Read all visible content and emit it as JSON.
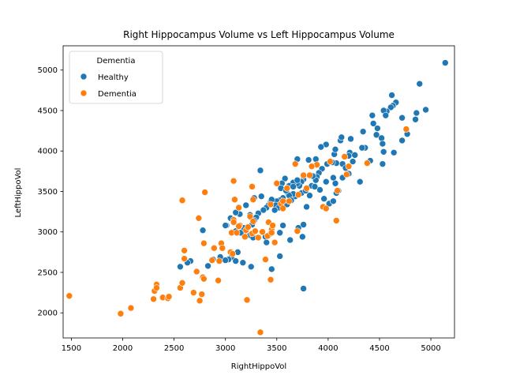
{
  "chart_data": {
    "type": "scatter",
    "title": "Right Hippocampus Volume vs Left Hippocampus Volume",
    "xlabel": "RightHippoVol",
    "ylabel": "LeftHippoVol",
    "xlim": [
      1420,
      5230
    ],
    "ylim": [
      1690,
      5300
    ],
    "xticks": [
      1500,
      2000,
      2500,
      3000,
      3500,
      4000,
      4500,
      5000
    ],
    "yticks": [
      2000,
      2500,
      3000,
      3500,
      4000,
      4500,
      5000
    ],
    "grid": false,
    "legend": {
      "title": "Dementia",
      "position": "top-left"
    },
    "series": [
      {
        "name": "Healthy",
        "color": "#1f77b4",
        "points": [
          [
            5140,
            5090
          ],
          [
            4890,
            4830
          ],
          [
            4620,
            4690
          ],
          [
            4660,
            4600
          ],
          [
            4630,
            4560
          ],
          [
            4610,
            4540
          ],
          [
            4570,
            4490
          ],
          [
            4540,
            4500
          ],
          [
            4560,
            4440
          ],
          [
            4430,
            4440
          ],
          [
            4720,
            4410
          ],
          [
            4950,
            4510
          ],
          [
            4860,
            4470
          ],
          [
            4850,
            4390
          ],
          [
            4440,
            4340
          ],
          [
            4480,
            4280
          ],
          [
            4340,
            4240
          ],
          [
            4470,
            4200
          ],
          [
            4520,
            4160
          ],
          [
            4770,
            4210
          ],
          [
            4720,
            4130
          ],
          [
            4220,
            4150
          ],
          [
            4120,
            4130
          ],
          [
            4130,
            4170
          ],
          [
            4060,
            3960
          ],
          [
            4070,
            4020
          ],
          [
            3980,
            4080
          ],
          [
            3930,
            4050
          ],
          [
            3880,
            3900
          ],
          [
            3810,
            3890
          ],
          [
            3700,
            3900
          ],
          [
            4360,
            4040
          ],
          [
            4330,
            4040
          ],
          [
            4530,
            4090
          ],
          [
            4640,
            3980
          ],
          [
            4540,
            3990
          ],
          [
            4410,
            3880
          ],
          [
            4530,
            3840
          ],
          [
            4210,
            3980
          ],
          [
            4200,
            3940
          ],
          [
            4140,
            3840
          ],
          [
            4080,
            3850
          ],
          [
            4240,
            3870
          ],
          [
            4040,
            3860
          ],
          [
            3990,
            3840
          ],
          [
            3940,
            3780
          ],
          [
            3910,
            3730
          ],
          [
            3890,
            3680
          ],
          [
            3880,
            3640
          ],
          [
            3850,
            3690
          ],
          [
            3760,
            3650
          ],
          [
            3740,
            3620
          ],
          [
            3720,
            3570
          ],
          [
            3700,
            3600
          ],
          [
            3660,
            3610
          ],
          [
            3620,
            3570
          ],
          [
            3580,
            3660
          ],
          [
            3610,
            3470
          ],
          [
            3550,
            3600
          ],
          [
            3540,
            3540
          ],
          [
            3560,
            3420
          ],
          [
            3530,
            3390
          ],
          [
            3500,
            3380
          ],
          [
            3490,
            3330
          ],
          [
            3520,
            3300
          ],
          [
            3480,
            3270
          ],
          [
            3440,
            3370
          ],
          [
            3420,
            3330
          ],
          [
            3400,
            3300
          ],
          [
            3370,
            3270
          ],
          [
            3320,
            3230
          ],
          [
            3300,
            3180
          ],
          [
            3280,
            3140
          ],
          [
            3240,
            3210
          ],
          [
            3140,
            3220
          ],
          [
            3100,
            3240
          ],
          [
            3050,
            3170
          ],
          [
            3010,
            3080
          ],
          [
            3100,
            3010
          ],
          [
            3150,
            2990
          ],
          [
            3240,
            2960
          ],
          [
            3270,
            2930
          ],
          [
            3400,
            2870
          ],
          [
            3390,
            2940
          ],
          [
            3440,
            2980
          ],
          [
            3530,
            2990
          ],
          [
            3630,
            2900
          ],
          [
            3560,
            3080
          ],
          [
            3710,
            3050
          ],
          [
            3750,
            2940
          ],
          [
            3760,
            3090
          ],
          [
            3790,
            3310
          ],
          [
            3820,
            3450
          ],
          [
            3740,
            3480
          ],
          [
            3680,
            3440
          ],
          [
            3660,
            3470
          ],
          [
            3780,
            3510
          ],
          [
            3840,
            3570
          ],
          [
            3960,
            3410
          ],
          [
            4010,
            3350
          ],
          [
            4050,
            3380
          ],
          [
            4100,
            3510
          ],
          [
            4070,
            3600
          ],
          [
            4140,
            3670
          ],
          [
            4200,
            3720
          ],
          [
            4310,
            3620
          ],
          [
            3920,
            3520
          ],
          [
            3980,
            3620
          ],
          [
            3340,
            3760
          ],
          [
            3280,
            3420
          ],
          [
            3350,
            3440
          ],
          [
            3200,
            3330
          ],
          [
            3120,
            2750
          ],
          [
            3060,
            2690
          ],
          [
            3030,
            2660
          ],
          [
            2950,
            2690
          ],
          [
            2880,
            2660
          ],
          [
            3100,
            2640
          ],
          [
            3170,
            2620
          ],
          [
            3250,
            2570
          ],
          [
            3000,
            2650
          ],
          [
            2830,
            2580
          ],
          [
            2660,
            2640
          ],
          [
            2630,
            2620
          ],
          [
            2560,
            2570
          ],
          [
            2780,
            3020
          ],
          [
            3000,
            3080
          ],
          [
            3180,
            3050
          ],
          [
            3260,
            3090
          ],
          [
            3450,
            2540
          ],
          [
            3530,
            2700
          ],
          [
            3760,
            2300
          ],
          [
            3620,
            3450
          ],
          [
            3660,
            3560
          ],
          [
            3700,
            3640
          ],
          [
            3870,
            3560
          ],
          [
            4080,
            3480
          ],
          [
            4170,
            3790
          ],
          [
            4260,
            3950
          ],
          [
            4050,
            3670
          ],
          [
            3450,
            3400
          ],
          [
            3600,
            3340
          ],
          [
            3640,
            3390
          ],
          [
            3590,
            3510
          ]
        ]
      },
      {
        "name": "Dementia",
        "color": "#ff7f0e",
        "points": [
          [
            1480,
            2210
          ],
          [
            1980,
            1990
          ],
          [
            2080,
            2060
          ],
          [
            2300,
            2170
          ],
          [
            2310,
            2270
          ],
          [
            2330,
            2350
          ],
          [
            2330,
            2310
          ],
          [
            2390,
            2190
          ],
          [
            2440,
            2180
          ],
          [
            2450,
            2200
          ],
          [
            2560,
            2310
          ],
          [
            2580,
            2370
          ],
          [
            2580,
            3390
          ],
          [
            2600,
            2770
          ],
          [
            2600,
            2670
          ],
          [
            2690,
            2250
          ],
          [
            2720,
            2510
          ],
          [
            2740,
            3170
          ],
          [
            2750,
            2150
          ],
          [
            2770,
            2230
          ],
          [
            2780,
            2440
          ],
          [
            2790,
            2860
          ],
          [
            2790,
            2420
          ],
          [
            2800,
            3490
          ],
          [
            2870,
            2650
          ],
          [
            2890,
            2800
          ],
          [
            2930,
            2400
          ],
          [
            2940,
            2640
          ],
          [
            2960,
            2860
          ],
          [
            2970,
            2800
          ],
          [
            3050,
            2750
          ],
          [
            3060,
            2990
          ],
          [
            3070,
            2730
          ],
          [
            3080,
            3150
          ],
          [
            3080,
            3120
          ],
          [
            3080,
            3630
          ],
          [
            3090,
            3400
          ],
          [
            3110,
            2990
          ],
          [
            3130,
            3300
          ],
          [
            3140,
            3080
          ],
          [
            3190,
            2940
          ],
          [
            3200,
            3020
          ],
          [
            3210,
            2160
          ],
          [
            3220,
            3060
          ],
          [
            3240,
            3190
          ],
          [
            3260,
            2980
          ],
          [
            3260,
            3560
          ],
          [
            3270,
            3400
          ],
          [
            3270,
            3130
          ],
          [
            3290,
            3010
          ],
          [
            3320,
            2930
          ],
          [
            3340,
            1760
          ],
          [
            3390,
            2660
          ],
          [
            3410,
            2950
          ],
          [
            3420,
            3120
          ],
          [
            3440,
            3340
          ],
          [
            3440,
            2410
          ],
          [
            3450,
            3030
          ],
          [
            3460,
            3080
          ],
          [
            3480,
            2870
          ],
          [
            3500,
            3600
          ],
          [
            3540,
            3350
          ],
          [
            3560,
            3380
          ],
          [
            3600,
            3540
          ],
          [
            3620,
            3380
          ],
          [
            3680,
            3840
          ],
          [
            3700,
            3010
          ],
          [
            3760,
            3700
          ],
          [
            3790,
            3540
          ],
          [
            3820,
            3700
          ],
          [
            3890,
            3830
          ],
          [
            3950,
            3310
          ],
          [
            3980,
            3290
          ],
          [
            4020,
            3870
          ],
          [
            4080,
            3140
          ],
          [
            4090,
            3510
          ],
          [
            4160,
            3930
          ],
          [
            4180,
            3710
          ],
          [
            4200,
            3810
          ],
          [
            4380,
            3850
          ],
          [
            4760,
            4270
          ],
          [
            3560,
            3290
          ],
          [
            3710,
            3460
          ],
          [
            3360,
            3000
          ],
          [
            3450,
            2990
          ],
          [
            3840,
            3810
          ],
          [
            3130,
            3070
          ]
        ]
      }
    ]
  }
}
